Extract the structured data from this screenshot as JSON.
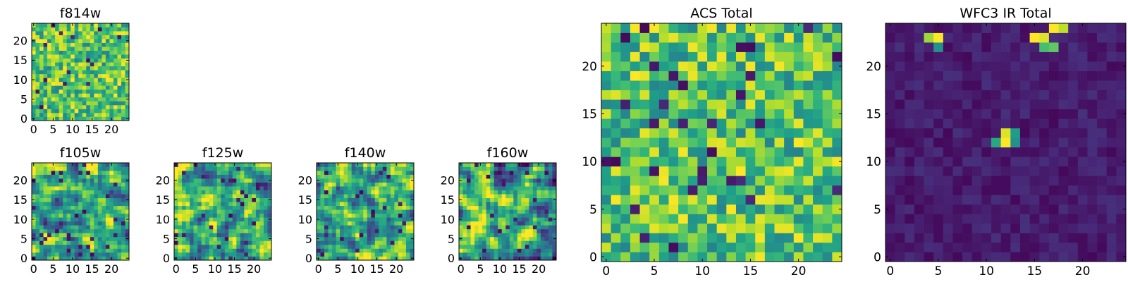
{
  "chart_data": [
    {
      "type": "heatmap",
      "title": "f814w",
      "grid_size": [
        25,
        25
      ],
      "x_ticks": [
        "0",
        "5",
        "10",
        "15",
        "20"
      ],
      "y_ticks": [
        "0",
        "5",
        "10",
        "15",
        "20"
      ],
      "colormap": "viridis",
      "pattern": "noise",
      "seed": 11
    },
    {
      "type": "heatmap",
      "title": "f105w",
      "grid_size": [
        25,
        25
      ],
      "x_ticks": [
        "0",
        "5",
        "10",
        "15",
        "20"
      ],
      "y_ticks": [
        "0",
        "5",
        "10",
        "15",
        "20"
      ],
      "colormap": "viridis",
      "pattern": "smooth",
      "seed": 23
    },
    {
      "type": "heatmap",
      "title": "f125w",
      "grid_size": [
        25,
        25
      ],
      "x_ticks": [
        "0",
        "5",
        "10",
        "15",
        "20"
      ],
      "y_ticks": [
        "0",
        "5",
        "10",
        "15",
        "20"
      ],
      "colormap": "viridis",
      "pattern": "smooth",
      "seed": 37
    },
    {
      "type": "heatmap",
      "title": "f140w",
      "grid_size": [
        25,
        25
      ],
      "x_ticks": [
        "0",
        "5",
        "10",
        "15",
        "20"
      ],
      "y_ticks": [
        "0",
        "5",
        "10",
        "15",
        "20"
      ],
      "colormap": "viridis",
      "pattern": "smooth",
      "seed": 41
    },
    {
      "type": "heatmap",
      "title": "f160w",
      "grid_size": [
        25,
        25
      ],
      "x_ticks": [
        "0",
        "5",
        "10",
        "15",
        "20"
      ],
      "y_ticks": [
        "0",
        "5",
        "10",
        "15",
        "20"
      ],
      "colormap": "viridis",
      "pattern": "smooth",
      "seed": 53
    },
    {
      "type": "heatmap",
      "title": "ACS Total",
      "grid_size": [
        25,
        25
      ],
      "x_ticks": [
        "0",
        "5",
        "10",
        "15",
        "20"
      ],
      "y_ticks": [
        "0",
        "5",
        "10",
        "15",
        "20"
      ],
      "colormap": "viridis",
      "pattern": "noise",
      "seed": 67
    },
    {
      "type": "heatmap",
      "title": "WFC3 IR Total",
      "grid_size": [
        25,
        25
      ],
      "x_ticks": [
        "0",
        "5",
        "10",
        "15",
        "20"
      ],
      "y_ticks": [
        "0",
        "5",
        "10",
        "15",
        "20"
      ],
      "colormap": "viridis",
      "pattern": "dark",
      "seed": 79,
      "hot_pixels": [
        {
          "col": 4,
          "row": 23,
          "value": 0.85
        },
        {
          "col": 5,
          "row": 23,
          "value": 1.0
        },
        {
          "col": 5,
          "row": 22,
          "value": 0.5
        },
        {
          "col": 15,
          "row": 23,
          "value": 1.0
        },
        {
          "col": 16,
          "row": 23,
          "value": 0.95
        },
        {
          "col": 17,
          "row": 24,
          "value": 1.0
        },
        {
          "col": 18,
          "row": 24,
          "value": 0.9
        },
        {
          "col": 16,
          "row": 22,
          "value": 0.7
        },
        {
          "col": 17,
          "row": 22,
          "value": 0.75
        },
        {
          "col": 12,
          "row": 13,
          "value": 0.95
        },
        {
          "col": 12,
          "row": 12,
          "value": 1.0
        },
        {
          "col": 11,
          "row": 12,
          "value": 0.6
        },
        {
          "col": 13,
          "row": 12,
          "value": 0.5
        },
        {
          "col": 13,
          "row": 13,
          "value": 0.55
        }
      ]
    }
  ]
}
